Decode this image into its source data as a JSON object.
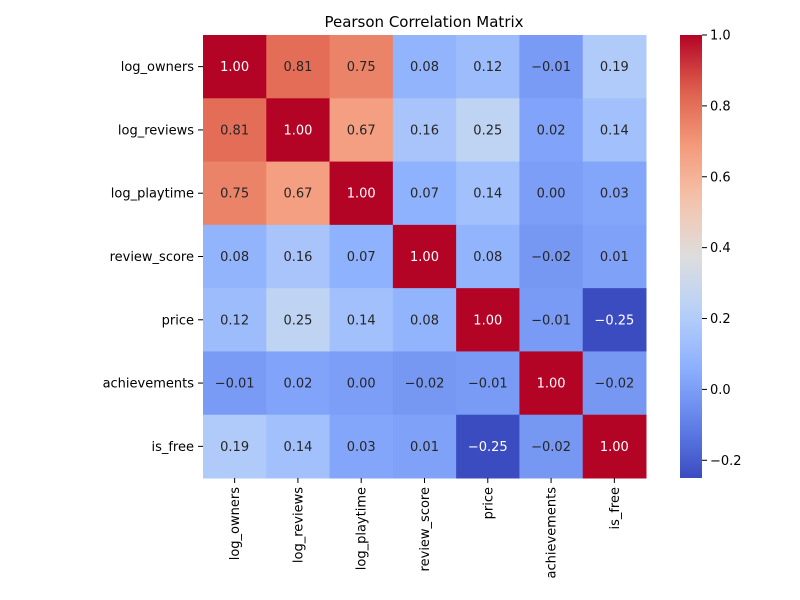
{
  "chart_data": {
    "type": "heatmap",
    "title": "Pearson Correlation Matrix",
    "xlabel": "",
    "ylabel": "",
    "row_labels": [
      "log_owners",
      "log_reviews",
      "log_playtime",
      "review_score",
      "price",
      "achievements",
      "is_free"
    ],
    "col_labels": [
      "log_owners",
      "log_reviews",
      "log_playtime",
      "review_score",
      "price",
      "achievements",
      "is_free"
    ],
    "values": [
      [
        1.0,
        0.81,
        0.75,
        0.08,
        0.12,
        -0.01,
        0.19
      ],
      [
        0.81,
        1.0,
        0.67,
        0.16,
        0.25,
        0.02,
        0.14
      ],
      [
        0.75,
        0.67,
        1.0,
        0.07,
        0.14,
        0.0,
        0.03
      ],
      [
        0.08,
        0.16,
        0.07,
        1.0,
        0.08,
        -0.02,
        0.01
      ],
      [
        0.12,
        0.25,
        0.14,
        0.08,
        1.0,
        -0.01,
        -0.25
      ],
      [
        -0.01,
        0.02,
        0.0,
        -0.02,
        -0.01,
        1.0,
        -0.02
      ],
      [
        0.19,
        0.14,
        0.03,
        0.01,
        -0.25,
        -0.02,
        1.0
      ]
    ],
    "value_format": "0.00",
    "colormap": "coolwarm",
    "colorbar": {
      "range": [
        -0.25,
        1.0
      ],
      "ticks": [
        -0.2,
        0.0,
        0.2,
        0.4,
        0.6,
        0.8,
        1.0
      ],
      "tick_labels": [
        "−0.2",
        "0.0",
        "0.2",
        "0.4",
        "0.6",
        "0.8",
        "1.0"
      ]
    },
    "grid": false
  }
}
